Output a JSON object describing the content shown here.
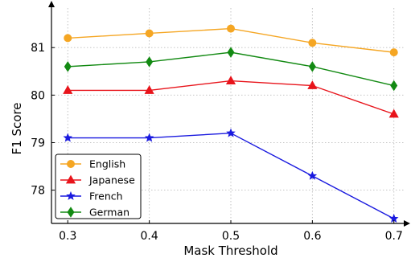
{
  "chart_data": {
    "type": "line",
    "title": "",
    "xlabel": "Mask Threshold",
    "ylabel": "F1 Score",
    "x": [
      0.3,
      0.4,
      0.5,
      0.6,
      0.7
    ],
    "x_tick_labels": [
      "0.3",
      "0.4",
      "0.5",
      "0.6",
      "0.7"
    ],
    "y_ticks": [
      78,
      79,
      80,
      81
    ],
    "xlim": [
      0.28,
      0.72
    ],
    "ylim": [
      77.3,
      81.9
    ],
    "grid": true,
    "legend_position": "lower-left",
    "series": [
      {
        "name": "English",
        "values": [
          81.2,
          81.3,
          81.4,
          81.1,
          80.9
        ],
        "color": "#f5a623",
        "marker": "circle"
      },
      {
        "name": "Japanese",
        "values": [
          80.1,
          80.1,
          80.3,
          80.2,
          79.6
        ],
        "color": "#e8141b",
        "marker": "triangle"
      },
      {
        "name": "French",
        "values": [
          79.1,
          79.1,
          79.2,
          78.3,
          77.4
        ],
        "color": "#1a1adf",
        "marker": "star"
      },
      {
        "name": "German",
        "values": [
          80.6,
          80.7,
          80.9,
          80.6,
          80.2
        ],
        "color": "#138a13",
        "marker": "diamond"
      }
    ]
  }
}
